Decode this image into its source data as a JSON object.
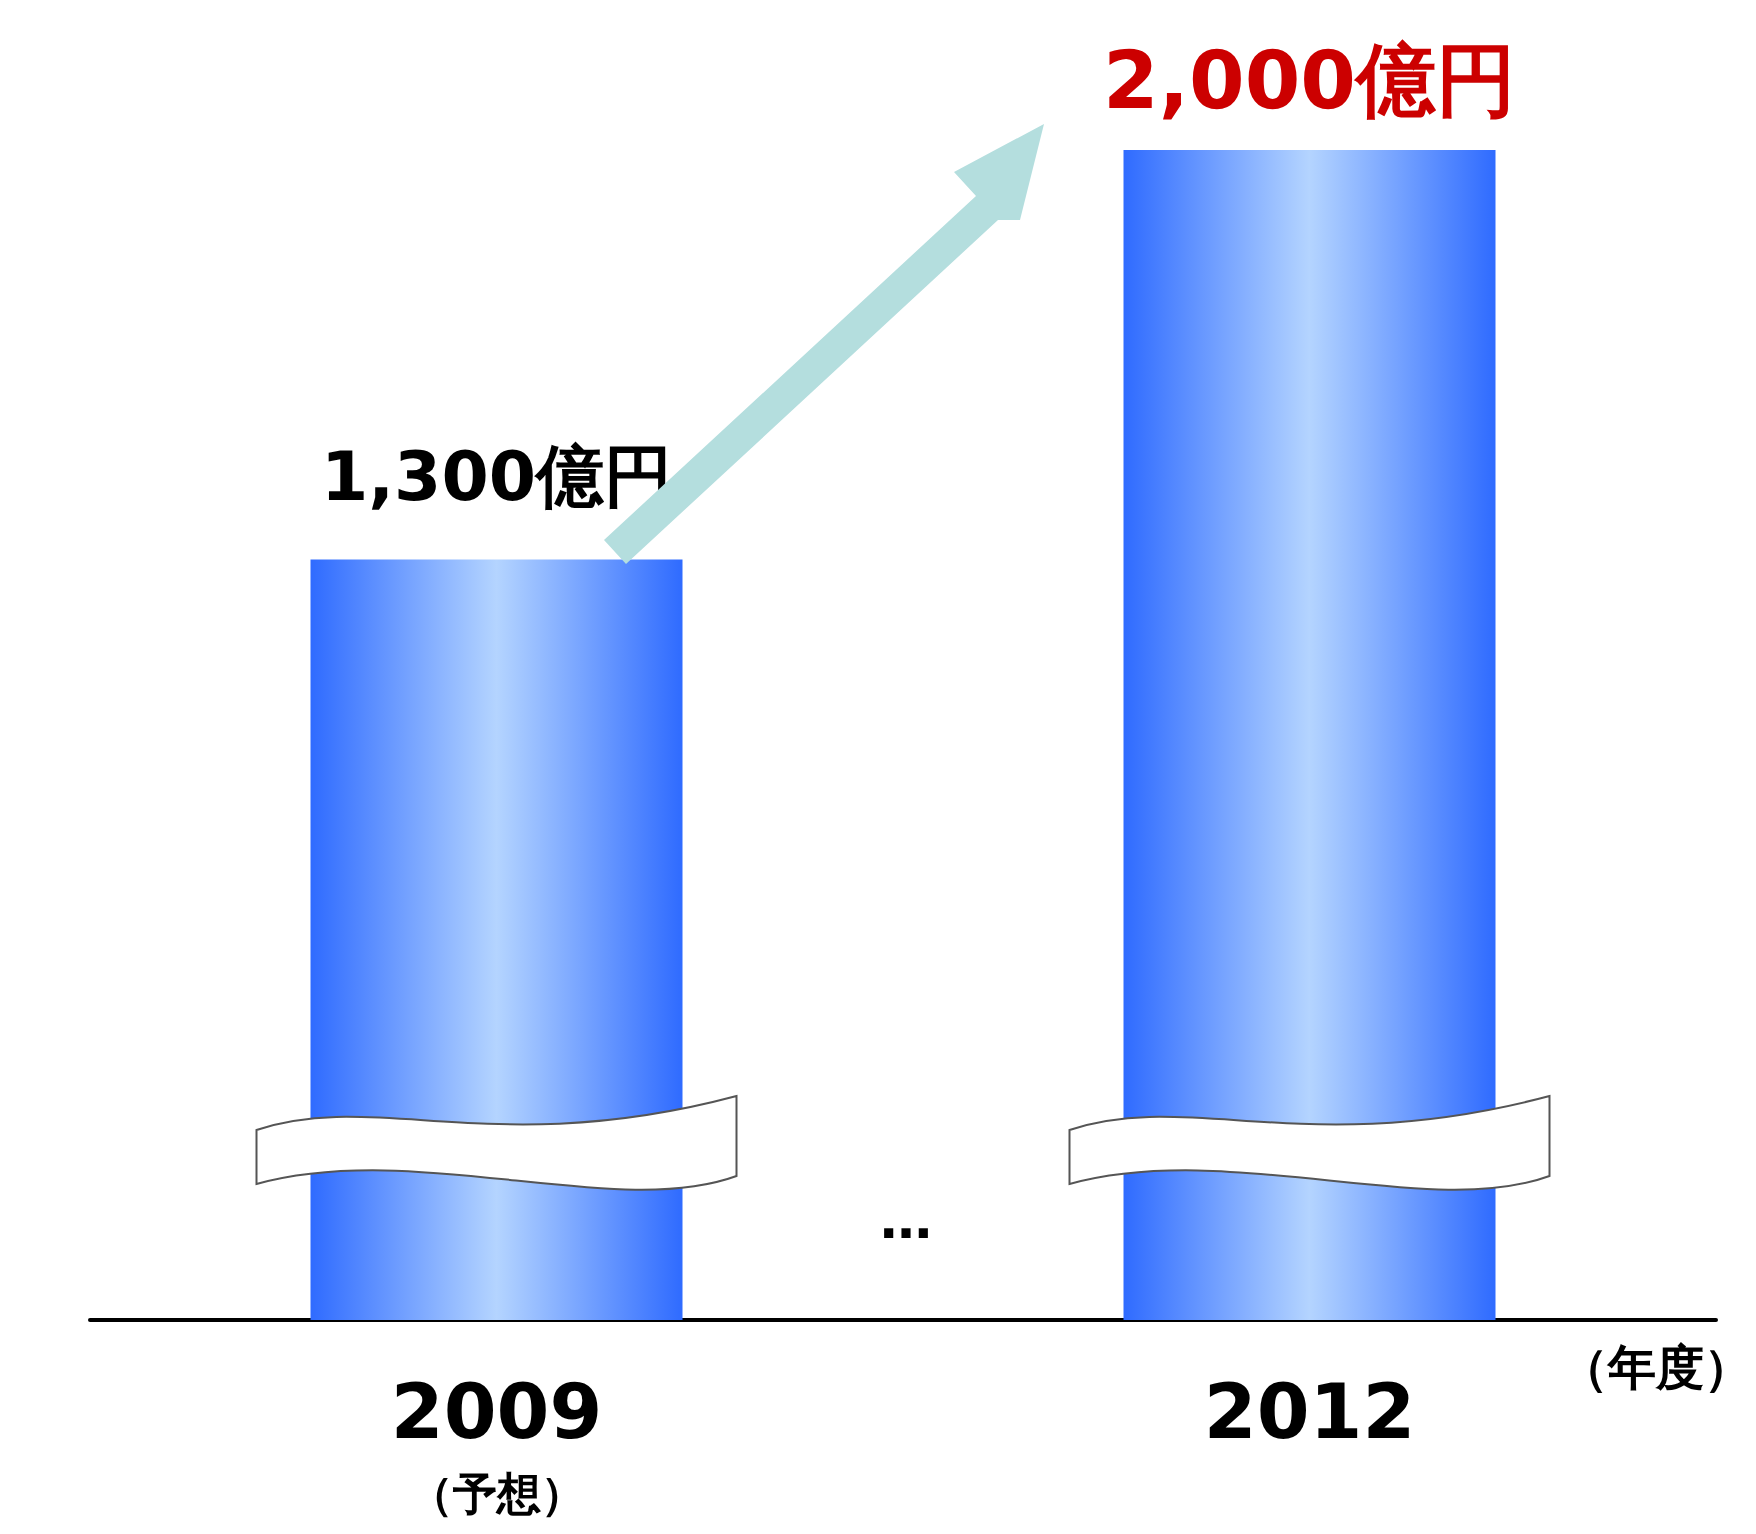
{
  "chart_data": {
    "type": "bar",
    "categories": [
      "2009\n（予想）",
      "2012"
    ],
    "values": [
      1300,
      2000
    ],
    "color": "#2f6bff",
    "value_labels": [
      "1,300億円",
      "2,000億円"
    ],
    "xlabel": "（年度）",
    "annotations": [
      "…"
    ],
    "grid": false
  }
}
